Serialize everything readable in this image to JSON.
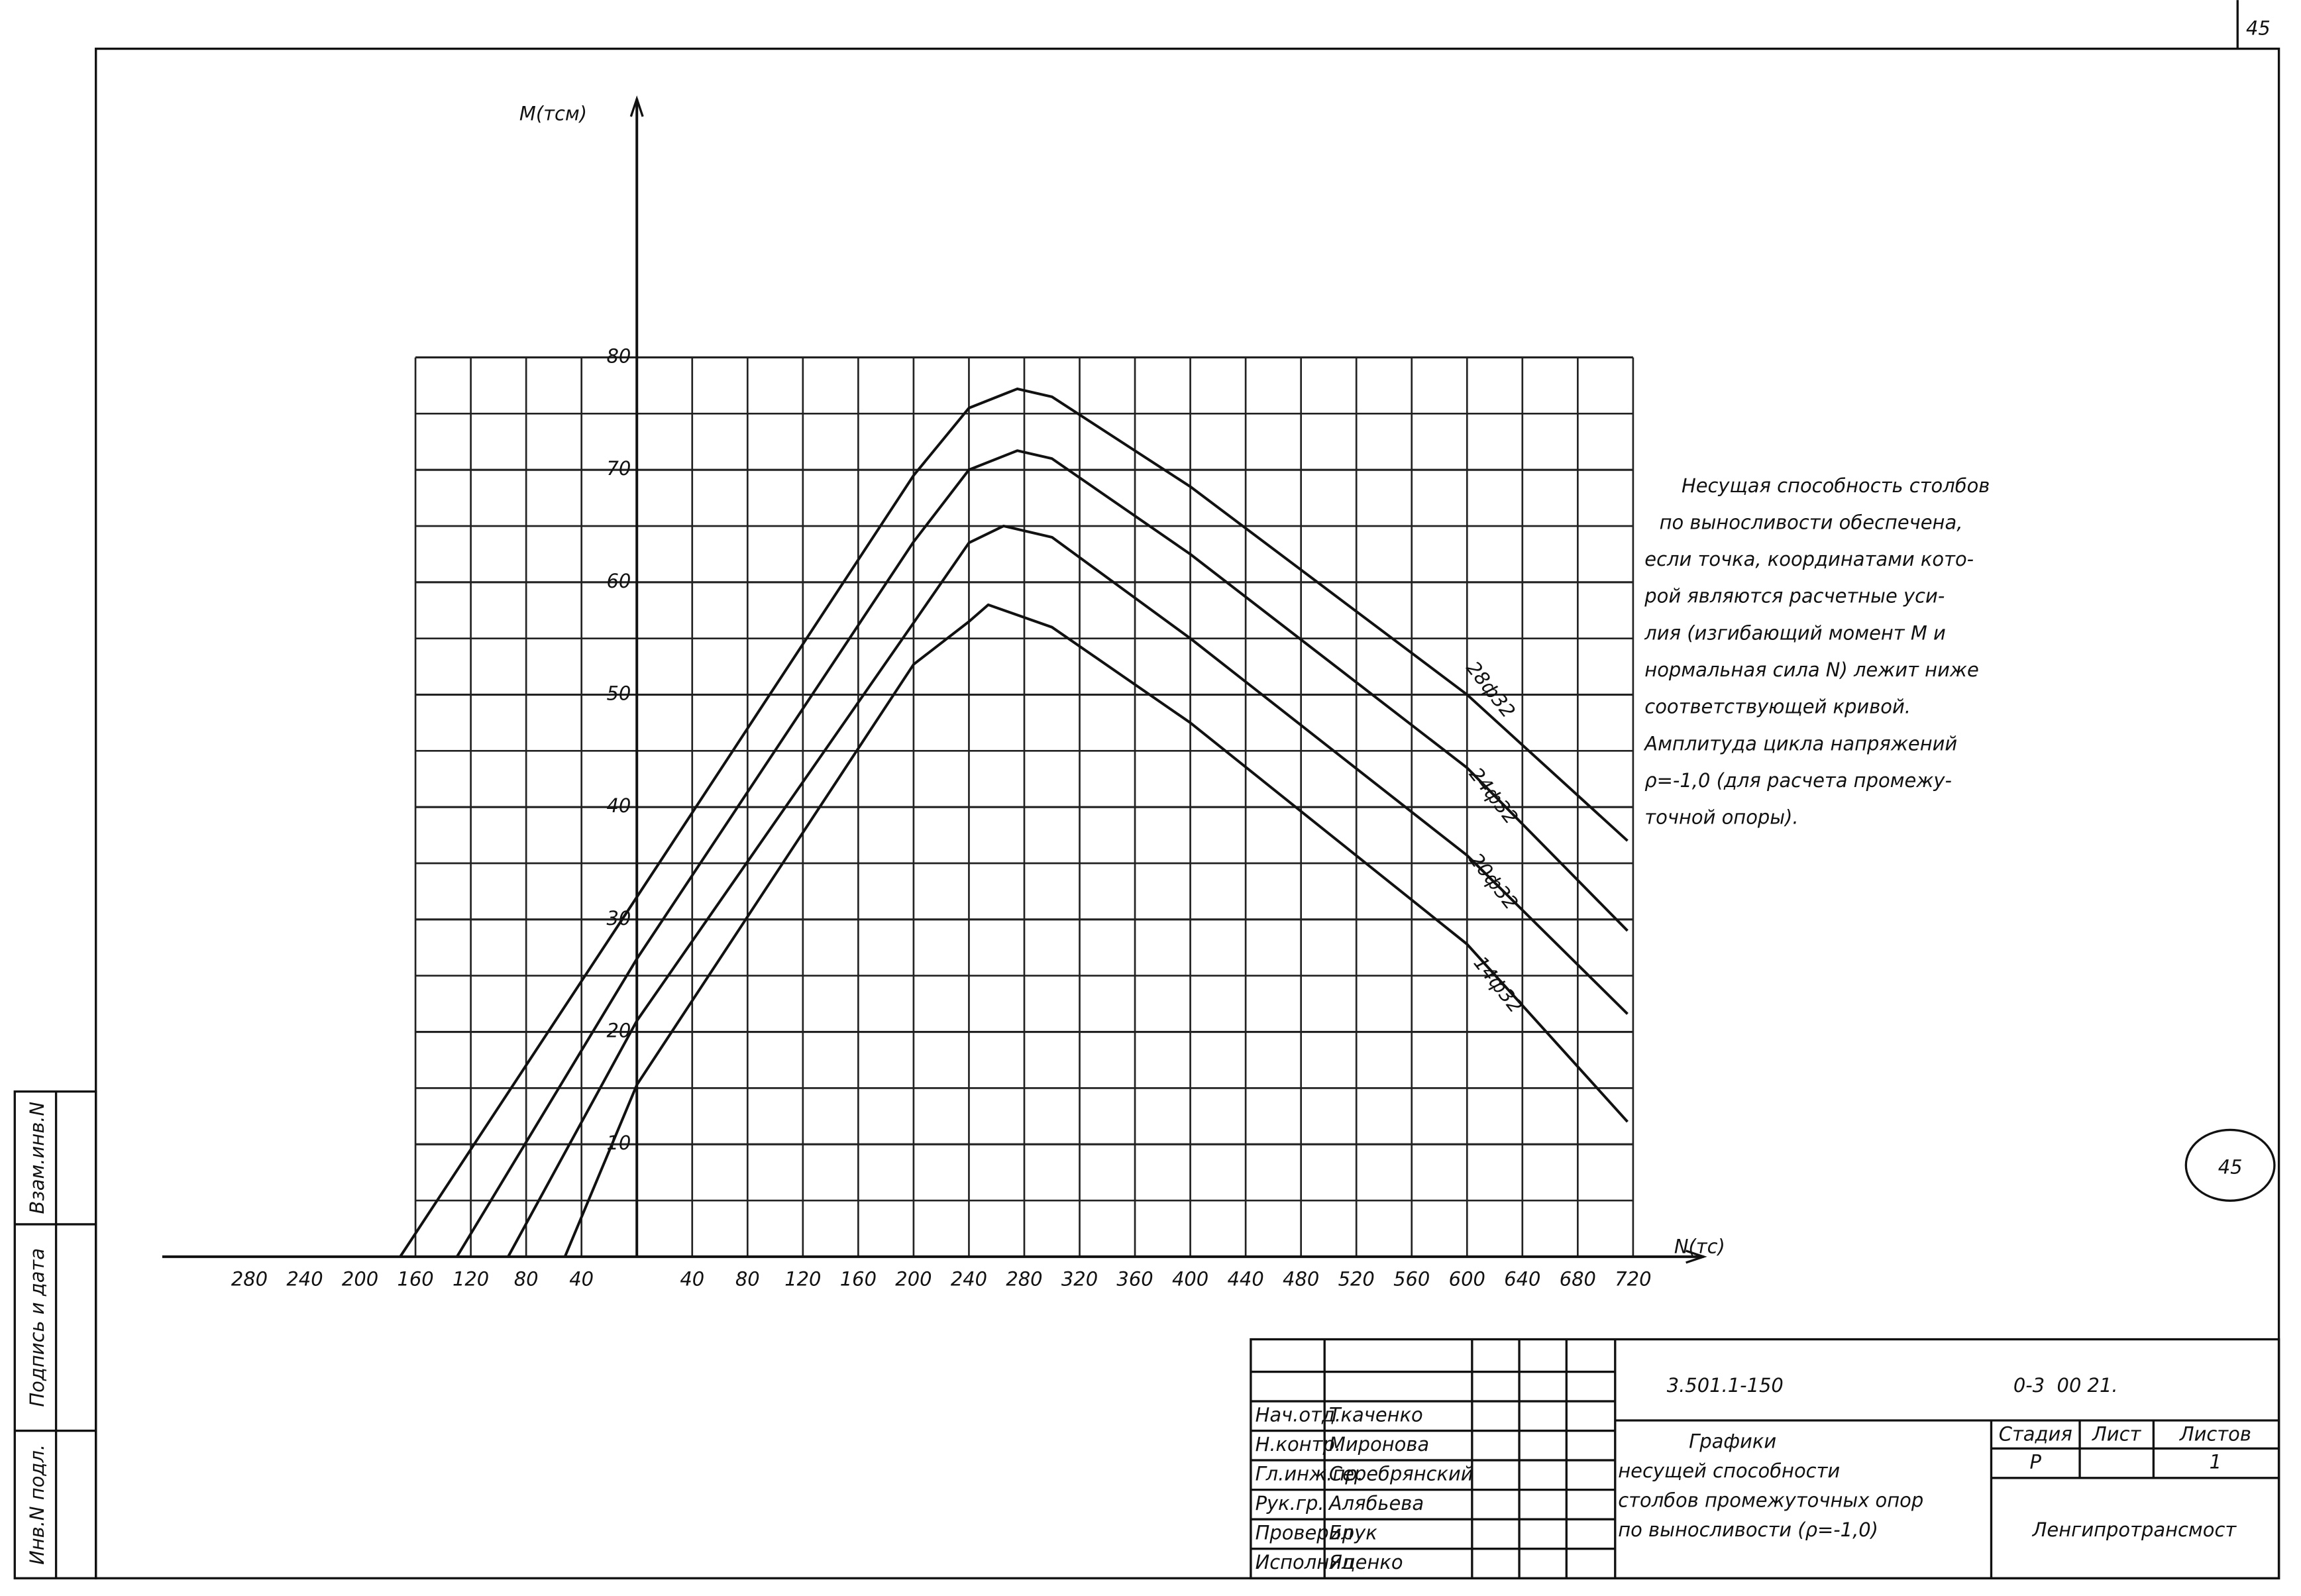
{
  "page_number": "45",
  "circled_number": "45",
  "side_stamps": [
    "Инв.N подл.",
    "Подпись и дата",
    "Взам.инв.N"
  ],
  "chart_data": {
    "type": "line",
    "y_label": "M(тсм)",
    "x_label": "N(тс)",
    "xlim": [
      -343,
      739
    ],
    "ylim": [
      0,
      103
    ],
    "xticks": [
      {
        "value": -280,
        "label": "280"
      },
      {
        "value": -240,
        "label": "240"
      },
      {
        "value": -200,
        "label": "200"
      },
      {
        "value": -160,
        "label": "160"
      },
      {
        "value": -120,
        "label": "120"
      },
      {
        "value": -80,
        "label": "80"
      },
      {
        "value": -40,
        "label": "40"
      },
      40,
      80,
      120,
      160,
      200,
      240,
      280,
      320,
      360,
      400,
      440,
      480,
      520,
      560,
      600,
      640,
      680,
      720
    ],
    "yticks": [
      10,
      20,
      30,
      40,
      50,
      60,
      70,
      80
    ],
    "grid": true,
    "series": [
      {
        "name": "28ф32",
        "color": "#111111",
        "x": [
          -171,
          0,
          200,
          240,
          275,
          300,
          400,
          600,
          716
        ],
        "values": [
          0,
          32,
          69.5,
          75.5,
          77.2,
          76.5,
          68.5,
          50,
          37
        ]
      },
      {
        "name": "24ф32",
        "color": "#111111",
        "x": [
          -130,
          0,
          200,
          240,
          275,
          300,
          400,
          600,
          716
        ],
        "values": [
          0,
          26.5,
          63.6,
          70,
          71.7,
          71,
          62.5,
          43.5,
          29
        ]
      },
      {
        "name": "20ф32",
        "color": "#111111",
        "x": [
          -93,
          0,
          200,
          240,
          265,
          300,
          400,
          600,
          716
        ],
        "values": [
          0,
          21,
          56.4,
          63.5,
          65,
          64,
          55,
          35.7,
          21.6
        ]
      },
      {
        "name": "14ф32",
        "color": "#111111",
        "x": [
          -52,
          0,
          200,
          240,
          254,
          300,
          400,
          600,
          716
        ],
        "values": [
          0,
          15.3,
          52.7,
          56.5,
          58,
          56,
          47.5,
          27.8,
          12
        ]
      }
    ]
  },
  "note": [
    "Несущая способность столбов",
    "по выносливости обеспечена,",
    "если точка, координатами кото-",
    "рой являются расчетные уси-",
    "лия (изгибающий момент M и",
    "нормальная сила N) лежит ниже",
    "соответствующей кривой.",
    "Амплитуда цикла напряжений",
    "ρ=-1,0 (для расчета промежу-",
    "точной опоры)."
  ],
  "title_block": {
    "code": "3.501.1-150",
    "sheet_code": "0-3  00 21.",
    "roles": [
      "Нач.отд.",
      "Н.контр.",
      "Гл.инж.пр.",
      "Рук.гр.",
      "Проверил",
      "Исполнил"
    ],
    "names": [
      "Ткаченко",
      "Миронова",
      "Серебрянский",
      "Алябьева",
      "Брук",
      "Яценко"
    ],
    "title_lines": [
      "Графики",
      "несущей способности",
      "столбов промежуточных опор",
      "по выносливости (ρ=-1,0)"
    ],
    "stage_header": "Стадия",
    "sheet_header": "Лист",
    "sheets_header": "Листов",
    "stage": "Р",
    "sheet": "1",
    "org": "Ленгипротрансмост"
  }
}
